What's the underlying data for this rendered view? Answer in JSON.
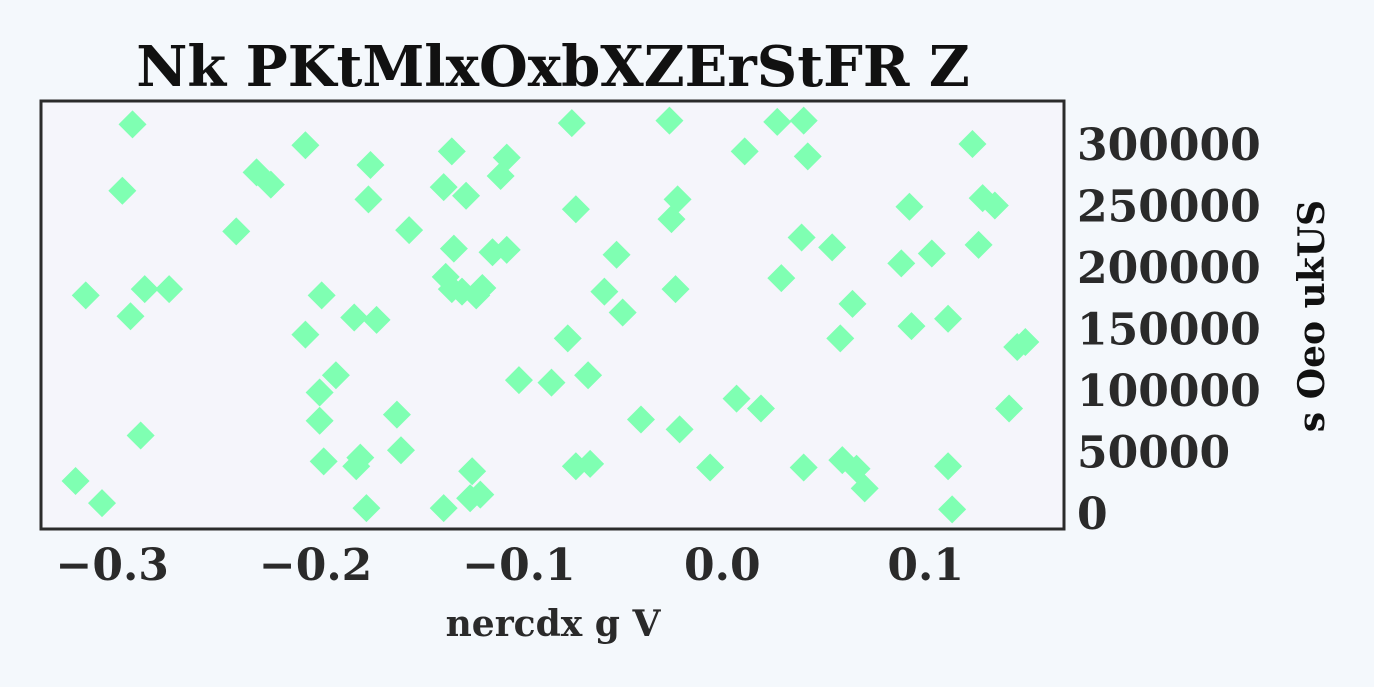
{
  "chart_data": {
    "type": "scatter",
    "title": "Nk PKtMlxOxbXZErStFR Z",
    "xlabel": "nercdx g V",
    "ylabel": "s Oeo ukUS",
    "xlim": [
      -0.335,
      0.168
    ],
    "ylim": [
      -13000,
      335000
    ],
    "xticks": [
      -0.3,
      -0.2,
      -0.1,
      0.0,
      0.1
    ],
    "xtick_labels": [
      "−0.3",
      "−0.2",
      "−0.1",
      "0.0",
      "0.1"
    ],
    "yticks": [
      0,
      50000,
      100000,
      150000,
      200000,
      250000,
      300000
    ],
    "ytick_labels": [
      "0",
      "50000",
      "100000",
      "150000",
      "200000",
      "250000",
      "300000"
    ],
    "y_axis_side": "right",
    "grid": false,
    "legend": "none",
    "marker": "diamond",
    "colors": {
      "marker": "#7fffb2",
      "plot_bg": "#f5f5fb",
      "frame": "#2b2b2b",
      "page_bg": "#f4f8fc"
    },
    "series": [
      {
        "points": [
          [
            -0.29,
            316000
          ],
          [
            -0.295,
            262000
          ],
          [
            -0.313,
            177000
          ],
          [
            -0.291,
            160000
          ],
          [
            -0.284,
            182000
          ],
          [
            -0.272,
            182000
          ],
          [
            -0.318,
            26000
          ],
          [
            -0.305,
            8000
          ],
          [
            -0.286,
            63000
          ],
          [
            -0.239,
            229000
          ],
          [
            -0.229,
            277000
          ],
          [
            -0.222,
            267000
          ],
          [
            -0.205,
            299000
          ],
          [
            -0.205,
            145000
          ],
          [
            -0.197,
            177000
          ],
          [
            -0.198,
            98000
          ],
          [
            -0.198,
            75000
          ],
          [
            -0.196,
            42000
          ],
          [
            -0.19,
            112000
          ],
          [
            -0.18,
            38000
          ],
          [
            -0.178,
            45000
          ],
          [
            -0.181,
            159000
          ],
          [
            -0.173,
            283000
          ],
          [
            -0.174,
            255000
          ],
          [
            -0.17,
            157000
          ],
          [
            -0.16,
            80000
          ],
          [
            -0.158,
            51000
          ],
          [
            -0.175,
            4000
          ],
          [
            -0.154,
            230000
          ],
          [
            -0.137,
            4000
          ],
          [
            -0.137,
            265000
          ],
          [
            -0.133,
            294000
          ],
          [
            -0.132,
            215000
          ],
          [
            -0.136,
            192000
          ],
          [
            -0.133,
            182000
          ],
          [
            -0.128,
            180000
          ],
          [
            -0.126,
            258000
          ],
          [
            -0.121,
            177000
          ],
          [
            -0.118,
            183000
          ],
          [
            -0.113,
            212000
          ],
          [
            -0.106,
            214000
          ],
          [
            -0.109,
            274000
          ],
          [
            -0.106,
            289000
          ],
          [
            -0.123,
            34000
          ],
          [
            -0.124,
            12000
          ],
          [
            -0.119,
            15000
          ],
          [
            -0.1,
            108000
          ],
          [
            -0.084,
            106000
          ],
          [
            -0.076,
            142000
          ],
          [
            -0.072,
            38000
          ],
          [
            -0.065,
            40000
          ],
          [
            -0.066,
            112000
          ],
          [
            -0.074,
            317000
          ],
          [
            -0.072,
            247000
          ],
          [
            -0.058,
            180000
          ],
          [
            -0.052,
            210000
          ],
          [
            -0.049,
            163000
          ],
          [
            -0.04,
            76000
          ],
          [
            -0.026,
            319000
          ],
          [
            -0.022,
            255000
          ],
          [
            -0.025,
            239000
          ],
          [
            -0.023,
            182000
          ],
          [
            -0.021,
            68000
          ],
          [
            -0.006,
            37000
          ],
          [
            0.011,
            294000
          ],
          [
            0.007,
            93000
          ],
          [
            0.019,
            85000
          ],
          [
            0.027,
            318000
          ],
          [
            0.029,
            191000
          ],
          [
            0.039,
            224000
          ],
          [
            0.04,
            319000
          ],
          [
            0.042,
            290000
          ],
          [
            0.04,
            37000
          ],
          [
            0.054,
            216000
          ],
          [
            0.058,
            142000
          ],
          [
            0.064,
            170000
          ],
          [
            0.059,
            43000
          ],
          [
            0.066,
            36000
          ],
          [
            0.07,
            20000
          ],
          [
            0.088,
            203000
          ],
          [
            0.092,
            249000
          ],
          [
            0.093,
            152000
          ],
          [
            0.103,
            211000
          ],
          [
            0.111,
            38000
          ],
          [
            0.111,
            158000
          ],
          [
            0.113,
            3000
          ],
          [
            0.123,
            300000
          ],
          [
            0.126,
            218000
          ],
          [
            0.128,
            256000
          ],
          [
            0.134,
            250000
          ],
          [
            0.141,
            85000
          ],
          [
            0.145,
            135000
          ],
          [
            0.149,
            139000
          ]
        ]
      }
    ]
  }
}
